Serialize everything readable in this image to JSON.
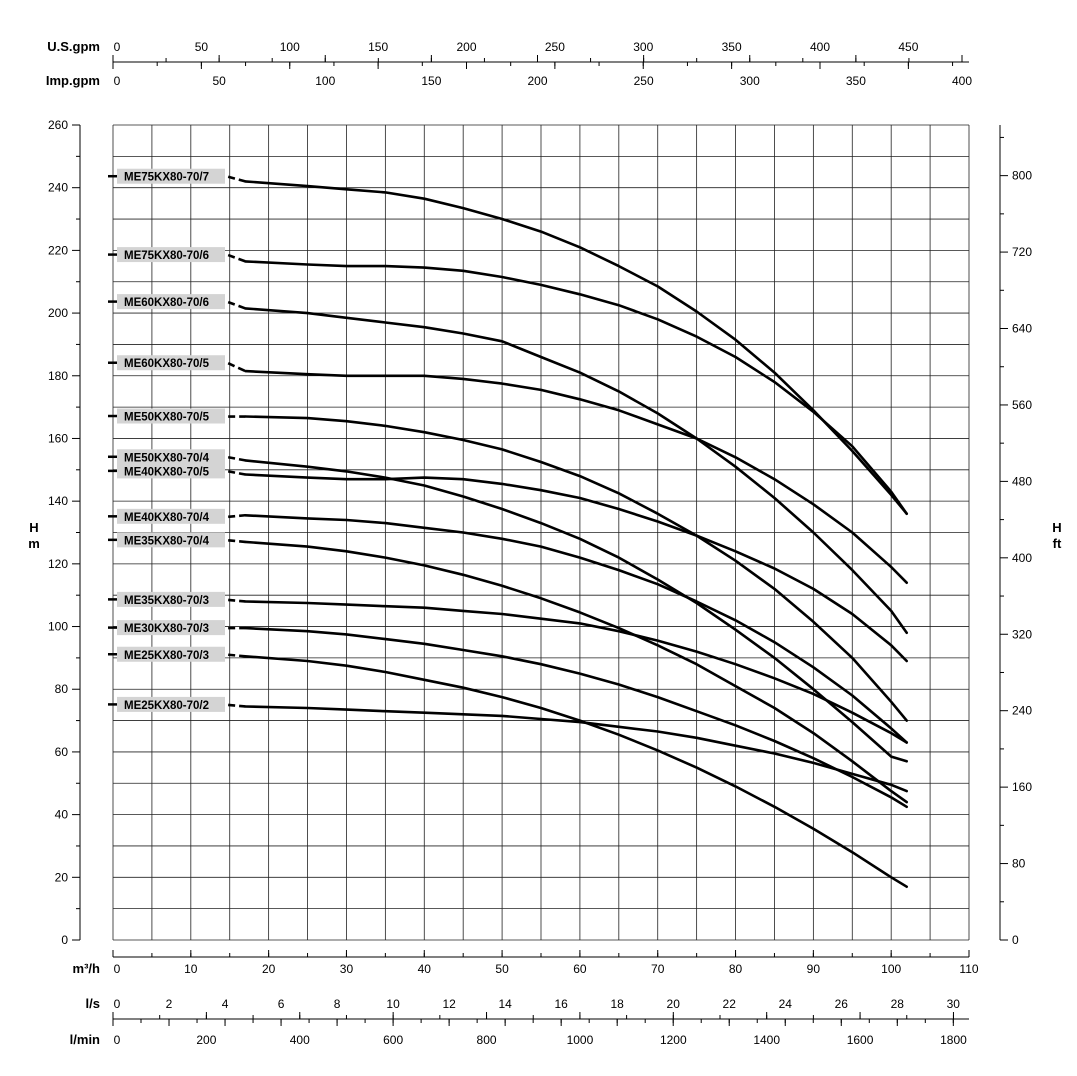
{
  "chart_data": {
    "type": "line",
    "x_unit": "m³/h",
    "y_unit": "m",
    "xlim": [
      0,
      110
    ],
    "ylim": [
      0,
      260
    ],
    "grid": true,
    "axes": {
      "usgpm": {
        "label": "U.S.gpm",
        "ticks": [
          0,
          50,
          100,
          150,
          200,
          250,
          300,
          350,
          400,
          450
        ],
        "range": [
          0,
          484.3
        ]
      },
      "impgpm": {
        "label": "Imp.gpm",
        "ticks": [
          0,
          50,
          100,
          150,
          200,
          250,
          300,
          350,
          400
        ],
        "range": [
          0,
          403.3
        ]
      },
      "m3h": {
        "label": "m³/h",
        "ticks": [
          0,
          10,
          20,
          30,
          40,
          50,
          60,
          70,
          80,
          90,
          100,
          110
        ]
      },
      "ls": {
        "label": "l/s",
        "ticks": [
          0,
          2,
          4,
          6,
          8,
          10,
          12,
          14,
          16,
          18,
          20,
          22,
          24,
          26,
          28,
          30
        ],
        "range": [
          0,
          30.56
        ]
      },
      "lmin": {
        "label": "l/min",
        "ticks": [
          0,
          200,
          400,
          600,
          800,
          1000,
          1200,
          1400,
          1600,
          1800
        ],
        "range": [
          0,
          1833.3
        ]
      },
      "hm_label_top": "H",
      "hm_label_bottom": "m",
      "hm_ticks": [
        0,
        20,
        40,
        60,
        80,
        100,
        120,
        140,
        160,
        180,
        200,
        220,
        240,
        260
      ],
      "hft_label_top": "H",
      "hft_label_bottom": "ft",
      "hft_ticks": [
        0,
        80,
        160,
        240,
        320,
        400,
        480,
        560,
        640,
        720,
        800
      ],
      "hft_range": [
        0,
        853
      ]
    },
    "series": [
      {
        "name": "ME75KX80-70/7",
        "label_y": 243.5,
        "x": [
          17,
          25,
          30,
          35,
          40,
          45,
          50,
          55,
          60,
          65,
          70,
          75,
          80,
          85,
          90,
          95,
          100,
          102
        ],
        "y": [
          242,
          240.5,
          239.5,
          238.5,
          236.5,
          233.5,
          230,
          226,
          221,
          215,
          208.5,
          200.5,
          191.5,
          181,
          169,
          156,
          142,
          136
        ]
      },
      {
        "name": "ME75KX80-70/6",
        "label_y": 218.5,
        "x": [
          17,
          25,
          30,
          35,
          40,
          45,
          50,
          55,
          60,
          65,
          70,
          75,
          80,
          85,
          90,
          95,
          100,
          102
        ],
        "y": [
          216.5,
          215.5,
          215,
          215,
          214.5,
          213.5,
          211.5,
          209,
          206,
          202.5,
          198,
          192.5,
          186,
          178,
          168.5,
          157.5,
          143,
          136
        ]
      },
      {
        "name": "ME60KX80-70/6",
        "label_y": 203.5,
        "x": [
          17,
          25,
          30,
          35,
          40,
          45,
          50,
          55,
          60,
          65,
          70,
          75,
          80,
          85,
          90,
          95,
          100,
          102
        ],
        "y": [
          201.5,
          200,
          198.5,
          197,
          195.5,
          193.5,
          191,
          186,
          181,
          175,
          168,
          160,
          151,
          141,
          130,
          118,
          105,
          98
        ]
      },
      {
        "name": "ME60KX80-70/5",
        "label_y": 184,
        "x": [
          17,
          25,
          30,
          35,
          40,
          45,
          50,
          55,
          60,
          65,
          70,
          75,
          80,
          85,
          90,
          95,
          100,
          102
        ],
        "y": [
          181.5,
          180.5,
          180,
          180,
          180,
          179,
          177.5,
          175.5,
          172.5,
          169,
          164.5,
          160,
          154,
          147,
          139,
          130,
          119,
          114
        ]
      },
      {
        "name": "ME50KX80-70/5",
        "label_y": 167,
        "x": [
          17,
          25,
          30,
          35,
          40,
          45,
          50,
          55,
          60,
          65,
          70,
          75,
          80,
          85,
          90,
          95,
          100,
          102
        ],
        "y": [
          167,
          166.5,
          165.5,
          164,
          162,
          159.5,
          156.5,
          152.5,
          148,
          142.5,
          136,
          129,
          121,
          112,
          101.5,
          90,
          76,
          70
        ]
      },
      {
        "name": "ME50KX80-70/4",
        "label_y": 154,
        "x": [
          17,
          25,
          30,
          35,
          40,
          45,
          50,
          55,
          60,
          65,
          70,
          75,
          80,
          85,
          90,
          95,
          100,
          102
        ],
        "y": [
          153,
          151,
          149.5,
          147.5,
          145,
          141.5,
          137.5,
          133,
          128,
          122,
          115,
          107.5,
          99,
          90,
          80,
          69.5,
          58.5,
          57
        ]
      },
      {
        "name": "ME40KX80-70/5",
        "label_y": 149.5,
        "x": [
          17,
          25,
          30,
          35,
          40,
          45,
          50,
          55,
          60,
          65,
          70,
          75,
          80,
          85,
          90,
          95,
          100,
          102
        ],
        "y": [
          148.5,
          147.5,
          147,
          147,
          147.5,
          147,
          145.5,
          143.5,
          141,
          137.5,
          133.5,
          129,
          124,
          118.5,
          112,
          104,
          94,
          89
        ]
      },
      {
        "name": "ME40KX80-70/4",
        "label_y": 135,
        "x": [
          17,
          25,
          30,
          35,
          40,
          45,
          50,
          55,
          60,
          65,
          70,
          75,
          80,
          85,
          90,
          95,
          100,
          102
        ],
        "y": [
          135.5,
          134.5,
          134,
          133,
          131.5,
          130,
          128,
          125.5,
          122,
          118,
          113.5,
          108,
          102,
          95,
          87,
          78,
          67.5,
          63
        ]
      },
      {
        "name": "ME35KX80-70/4",
        "label_y": 127.5,
        "x": [
          17,
          25,
          30,
          35,
          40,
          45,
          50,
          55,
          60,
          65,
          70,
          75,
          80,
          85,
          90,
          95,
          100,
          102
        ],
        "y": [
          127,
          125.5,
          124,
          122,
          119.5,
          116.5,
          113,
          109,
          104.5,
          99.5,
          94,
          88,
          81,
          74,
          66,
          57,
          47.5,
          44
        ]
      },
      {
        "name": "ME35KX80-70/3",
        "label_y": 108.5,
        "x": [
          17,
          25,
          30,
          35,
          40,
          45,
          50,
          55,
          60,
          65,
          70,
          75,
          80,
          85,
          90,
          95,
          100,
          102
        ],
        "y": [
          108,
          107.5,
          107,
          106.5,
          106,
          105,
          104,
          102.5,
          101,
          98.5,
          95.5,
          92,
          88,
          83.5,
          78.5,
          72.5,
          66,
          63
        ]
      },
      {
        "name": "ME30KX80-70/3",
        "label_y": 99.5,
        "x": [
          17,
          25,
          30,
          35,
          40,
          45,
          50,
          55,
          60,
          65,
          70,
          75,
          80,
          85,
          90,
          95,
          100,
          102
        ],
        "y": [
          99.5,
          98.5,
          97.5,
          96,
          94.5,
          92.5,
          90.5,
          88,
          85,
          81.5,
          77.5,
          73,
          68.5,
          63.5,
          58,
          52,
          45.5,
          42.5
        ]
      },
      {
        "name": "ME25KX80-70/3",
        "label_y": 91,
        "x": [
          17,
          25,
          30,
          35,
          40,
          45,
          50,
          55,
          60,
          65,
          70,
          75,
          80,
          85,
          90,
          95,
          100,
          102
        ],
        "y": [
          90.5,
          89,
          87.5,
          85.5,
          83,
          80.5,
          77.5,
          74,
          70,
          65.5,
          60.5,
          55,
          49,
          42.5,
          35.5,
          28,
          20,
          17
        ]
      },
      {
        "name": "ME25KX80-70/2",
        "label_y": 75,
        "x": [
          17,
          25,
          30,
          35,
          40,
          45,
          50,
          55,
          60,
          65,
          70,
          75,
          80,
          85,
          90,
          95,
          100,
          102
        ],
        "y": [
          74.5,
          74,
          73.5,
          73,
          72.5,
          72,
          71.5,
          70.5,
          69.5,
          68,
          66.5,
          64.5,
          62,
          59.5,
          56.5,
          53,
          49.5,
          47.5
        ]
      }
    ]
  }
}
